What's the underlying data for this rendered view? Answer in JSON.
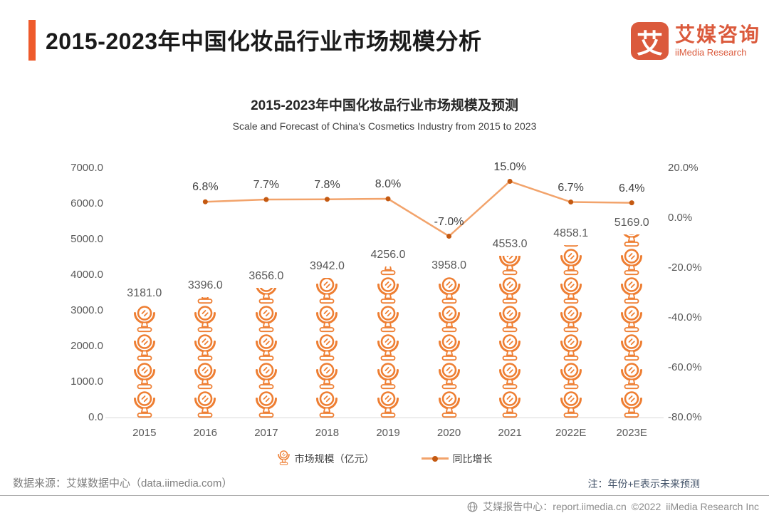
{
  "header": {
    "title": "2015-2023年中国化妆品行业市场规模分析",
    "logo": {
      "mark": "艾",
      "name_cn": "艾媒咨询",
      "name_en": "iiMedia Research"
    }
  },
  "chart": {
    "title": "2015-2023年中国化妆品行业市场规模及预测",
    "subtitle": "Scale and Forecast of China's Cosmetics Industry from 2015 to 2023"
  },
  "chart_data": {
    "type": "bar",
    "combo": "pictogram-bar + line",
    "title": "2015-2023年中国化妆品行业市场规模及预测",
    "categories": [
      "2015",
      "2016",
      "2017",
      "2018",
      "2019",
      "2020",
      "2021",
      "2022E",
      "2023E"
    ],
    "series": [
      {
        "name": "市场规模（亿元）",
        "type": "bar",
        "axis": "left",
        "values": [
          3181.0,
          3396.0,
          3656.0,
          3942.0,
          4256.0,
          3958.0,
          4553.0,
          4858.1,
          5169.0
        ],
        "value_labels": [
          "3181.0",
          "3396.0",
          "3656.0",
          "3942.0",
          "4256.0",
          "3958.0",
          "4553.0",
          "4858.1",
          "5169.0"
        ]
      },
      {
        "name": "同比增长",
        "type": "line",
        "axis": "right",
        "values": [
          null,
          6.8,
          7.7,
          7.8,
          8.0,
          -7.0,
          15.0,
          6.7,
          6.4
        ],
        "value_labels": [
          null,
          "6.8%",
          "7.7%",
          "7.8%",
          "8.0%",
          "-7.0%",
          "15.0%",
          "6.7%",
          "6.4%"
        ]
      }
    ],
    "y_left": {
      "min": 0,
      "max": 7000,
      "ticks": [
        "7000.0",
        "6000.0",
        "5000.0",
        "4000.0",
        "3000.0",
        "2000.0",
        "1000.0",
        "0.0"
      ]
    },
    "y_right": {
      "min": -80,
      "max": 20,
      "ticks": [
        "20.0%",
        "0.0%",
        "-20.0%",
        "-40.0%",
        "-60.0%",
        "-80.0%"
      ]
    },
    "legend": [
      "市场规模（亿元）",
      "同比增长"
    ],
    "legend_position": "bottom-center",
    "grid": "baseline-only"
  },
  "footer": {
    "source": "数据来源：艾媒数据中心（data.iimedia.com）",
    "note": "注：年份+E表示未来预测",
    "report_center": "艾媒报告中心：report.iimedia.cn",
    "copyright": "©2022",
    "company": "iiMedia Research Inc"
  },
  "colors": {
    "accent": "#EE5A2B",
    "logo": "#DB5A3C",
    "bar_icon": "#EE7E32",
    "line": "#F2A36B",
    "line_dot": "#C45911",
    "axis_text": "#595959",
    "bar_label": "#595959",
    "pct_label": "#404040",
    "baseline": "#D9D9D9",
    "source_text": "#7F7F7F",
    "note_text": "#44546A",
    "footer_text": "#8C8C8C",
    "title_text": "#1A1A1A"
  }
}
